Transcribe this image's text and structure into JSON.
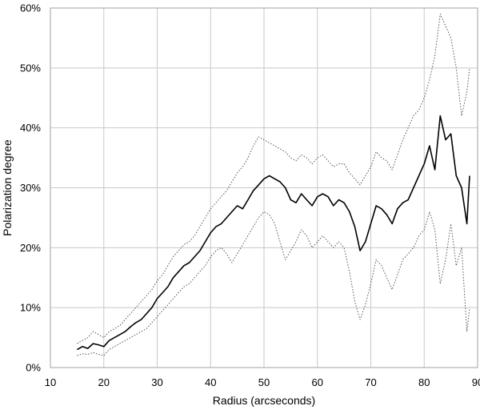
{
  "chart_data": {
    "type": "line",
    "title": "",
    "xlabel": "Radius (arcseconds)",
    "ylabel": "Polarization degree",
    "xlim": [
      10,
      90
    ],
    "ylim": [
      0,
      60
    ],
    "xticks": [
      10,
      20,
      30,
      40,
      50,
      60,
      70,
      80,
      90
    ],
    "yticks": [
      0,
      10,
      20,
      30,
      40,
      50,
      60
    ],
    "yticks_labels": [
      "0%",
      "10%",
      "20%",
      "30%",
      "40%",
      "50%",
      "60%"
    ],
    "grid": true,
    "legend": "none",
    "series": [
      {
        "style": "solid",
        "color": "#000000",
        "points": [
          [
            15,
            3
          ],
          [
            16,
            3.5
          ],
          [
            17,
            3.2
          ],
          [
            18,
            4
          ],
          [
            19,
            3.8
          ],
          [
            20,
            3.5
          ],
          [
            21,
            4.5
          ],
          [
            22,
            5
          ],
          [
            23,
            5.5
          ],
          [
            24,
            6
          ],
          [
            25,
            6.8
          ],
          [
            26,
            7.5
          ],
          [
            27,
            8
          ],
          [
            28,
            9
          ],
          [
            29,
            10
          ],
          [
            30,
            11.5
          ],
          [
            31,
            12.5
          ],
          [
            32,
            13.5
          ],
          [
            33,
            15
          ],
          [
            34,
            16
          ],
          [
            35,
            17
          ],
          [
            36,
            17.5
          ],
          [
            37,
            18.5
          ],
          [
            38,
            19.5
          ],
          [
            39,
            21
          ],
          [
            40,
            22.5
          ],
          [
            41,
            23.5
          ],
          [
            42,
            24
          ],
          [
            43,
            25
          ],
          [
            44,
            26
          ],
          [
            45,
            27
          ],
          [
            46,
            26.5
          ],
          [
            47,
            28
          ],
          [
            48,
            29.5
          ],
          [
            49,
            30.5
          ],
          [
            50,
            31.5
          ],
          [
            51,
            32
          ],
          [
            52,
            31.5
          ],
          [
            53,
            31
          ],
          [
            54,
            30
          ],
          [
            55,
            28
          ],
          [
            56,
            27.5
          ],
          [
            57,
            29
          ],
          [
            58,
            28
          ],
          [
            59,
            27
          ],
          [
            60,
            28.5
          ],
          [
            61,
            29
          ],
          [
            62,
            28.5
          ],
          [
            63,
            27
          ],
          [
            64,
            28
          ],
          [
            65,
            27.5
          ],
          [
            66,
            26
          ],
          [
            67,
            23.5
          ],
          [
            68,
            19.5
          ],
          [
            69,
            21
          ],
          [
            70,
            24
          ],
          [
            71,
            27
          ],
          [
            72,
            26.5
          ],
          [
            73,
            25.5
          ],
          [
            74,
            24
          ],
          [
            75,
            26.5
          ],
          [
            76,
            27.5
          ],
          [
            77,
            28
          ],
          [
            78,
            30
          ],
          [
            79,
            32
          ],
          [
            80,
            34
          ],
          [
            81,
            37
          ],
          [
            82,
            33
          ],
          [
            83,
            42
          ],
          [
            84,
            38
          ],
          [
            85,
            39
          ],
          [
            86,
            32
          ],
          [
            87,
            30
          ],
          [
            88,
            24
          ],
          [
            88.5,
            32
          ]
        ]
      },
      {
        "style": "dotted",
        "color": "#555555",
        "points": [
          [
            15,
            4
          ],
          [
            16,
            4.5
          ],
          [
            17,
            5
          ],
          [
            18,
            6
          ],
          [
            19,
            5.5
          ],
          [
            20,
            5
          ],
          [
            21,
            6
          ],
          [
            22,
            6.5
          ],
          [
            23,
            7
          ],
          [
            24,
            8
          ],
          [
            25,
            9
          ],
          [
            26,
            10
          ],
          [
            27,
            11
          ],
          [
            28,
            12
          ],
          [
            29,
            13
          ],
          [
            30,
            14.5
          ],
          [
            31,
            15.5
          ],
          [
            32,
            17
          ],
          [
            33,
            18.5
          ],
          [
            34,
            19.5
          ],
          [
            35,
            20.5
          ],
          [
            36,
            21
          ],
          [
            37,
            22
          ],
          [
            38,
            23.5
          ],
          [
            39,
            25
          ],
          [
            40,
            26.5
          ],
          [
            41,
            27.5
          ],
          [
            42,
            28.5
          ],
          [
            43,
            29.5
          ],
          [
            44,
            31
          ],
          [
            45,
            32.5
          ],
          [
            46,
            33.5
          ],
          [
            47,
            35
          ],
          [
            48,
            37
          ],
          [
            49,
            38.5
          ],
          [
            50,
            38
          ],
          [
            51,
            37.5
          ],
          [
            52,
            37
          ],
          [
            53,
            36.5
          ],
          [
            54,
            36
          ],
          [
            55,
            35
          ],
          [
            56,
            34.5
          ],
          [
            57,
            35.5
          ],
          [
            58,
            35
          ],
          [
            59,
            34
          ],
          [
            60,
            35
          ],
          [
            61,
            35.5
          ],
          [
            62,
            34.5
          ],
          [
            63,
            33.5
          ],
          [
            64,
            34
          ],
          [
            65,
            34
          ],
          [
            66,
            32.5
          ],
          [
            67,
            31.5
          ],
          [
            68,
            30.5
          ],
          [
            69,
            32
          ],
          [
            70,
            33.5
          ],
          [
            71,
            36
          ],
          [
            72,
            35
          ],
          [
            73,
            34.5
          ],
          [
            74,
            33
          ],
          [
            75,
            35.5
          ],
          [
            76,
            38
          ],
          [
            77,
            40
          ],
          [
            78,
            42
          ],
          [
            79,
            43
          ],
          [
            80,
            45
          ],
          [
            81,
            48
          ],
          [
            82,
            52
          ],
          [
            83,
            59
          ],
          [
            84,
            57
          ],
          [
            85,
            55
          ],
          [
            86,
            50
          ],
          [
            87,
            42
          ],
          [
            88,
            46
          ],
          [
            88.5,
            50
          ]
        ]
      },
      {
        "style": "dotted",
        "color": "#555555",
        "points": [
          [
            15,
            2
          ],
          [
            16,
            2.3
          ],
          [
            17,
            2.2
          ],
          [
            18,
            2.5
          ],
          [
            19,
            2.2
          ],
          [
            20,
            2
          ],
          [
            21,
            3
          ],
          [
            22,
            3.5
          ],
          [
            23,
            4
          ],
          [
            24,
            4.5
          ],
          [
            25,
            5
          ],
          [
            26,
            5.5
          ],
          [
            27,
            6
          ],
          [
            28,
            6.5
          ],
          [
            29,
            7.5
          ],
          [
            30,
            8.5
          ],
          [
            31,
            9.5
          ],
          [
            32,
            10.5
          ],
          [
            33,
            11.5
          ],
          [
            34,
            12.5
          ],
          [
            35,
            13.5
          ],
          [
            36,
            14
          ],
          [
            37,
            15
          ],
          [
            38,
            16
          ],
          [
            39,
            17
          ],
          [
            40,
            18.5
          ],
          [
            41,
            19.5
          ],
          [
            42,
            20
          ],
          [
            43,
            19
          ],
          [
            44,
            17.5
          ],
          [
            45,
            19
          ],
          [
            46,
            20.5
          ],
          [
            47,
            22
          ],
          [
            48,
            23.5
          ],
          [
            49,
            25
          ],
          [
            50,
            26
          ],
          [
            51,
            25.5
          ],
          [
            52,
            24
          ],
          [
            53,
            21
          ],
          [
            54,
            18
          ],
          [
            55,
            19.5
          ],
          [
            56,
            21
          ],
          [
            57,
            23
          ],
          [
            58,
            22
          ],
          [
            59,
            20
          ],
          [
            60,
            21
          ],
          [
            61,
            22
          ],
          [
            62,
            21
          ],
          [
            63,
            20
          ],
          [
            64,
            21
          ],
          [
            65,
            20
          ],
          [
            66,
            16
          ],
          [
            67,
            11
          ],
          [
            68,
            8
          ],
          [
            69,
            10.5
          ],
          [
            70,
            14
          ],
          [
            71,
            18
          ],
          [
            72,
            17
          ],
          [
            73,
            15
          ],
          [
            74,
            13
          ],
          [
            75,
            15.5
          ],
          [
            76,
            18
          ],
          [
            77,
            19
          ],
          [
            78,
            20
          ],
          [
            79,
            22
          ],
          [
            80,
            23
          ],
          [
            81,
            26
          ],
          [
            82,
            23
          ],
          [
            83,
            14
          ],
          [
            84,
            18
          ],
          [
            85,
            24
          ],
          [
            86,
            17
          ],
          [
            87,
            20
          ],
          [
            88,
            6
          ],
          [
            88.5,
            10
          ]
        ]
      }
    ]
  }
}
